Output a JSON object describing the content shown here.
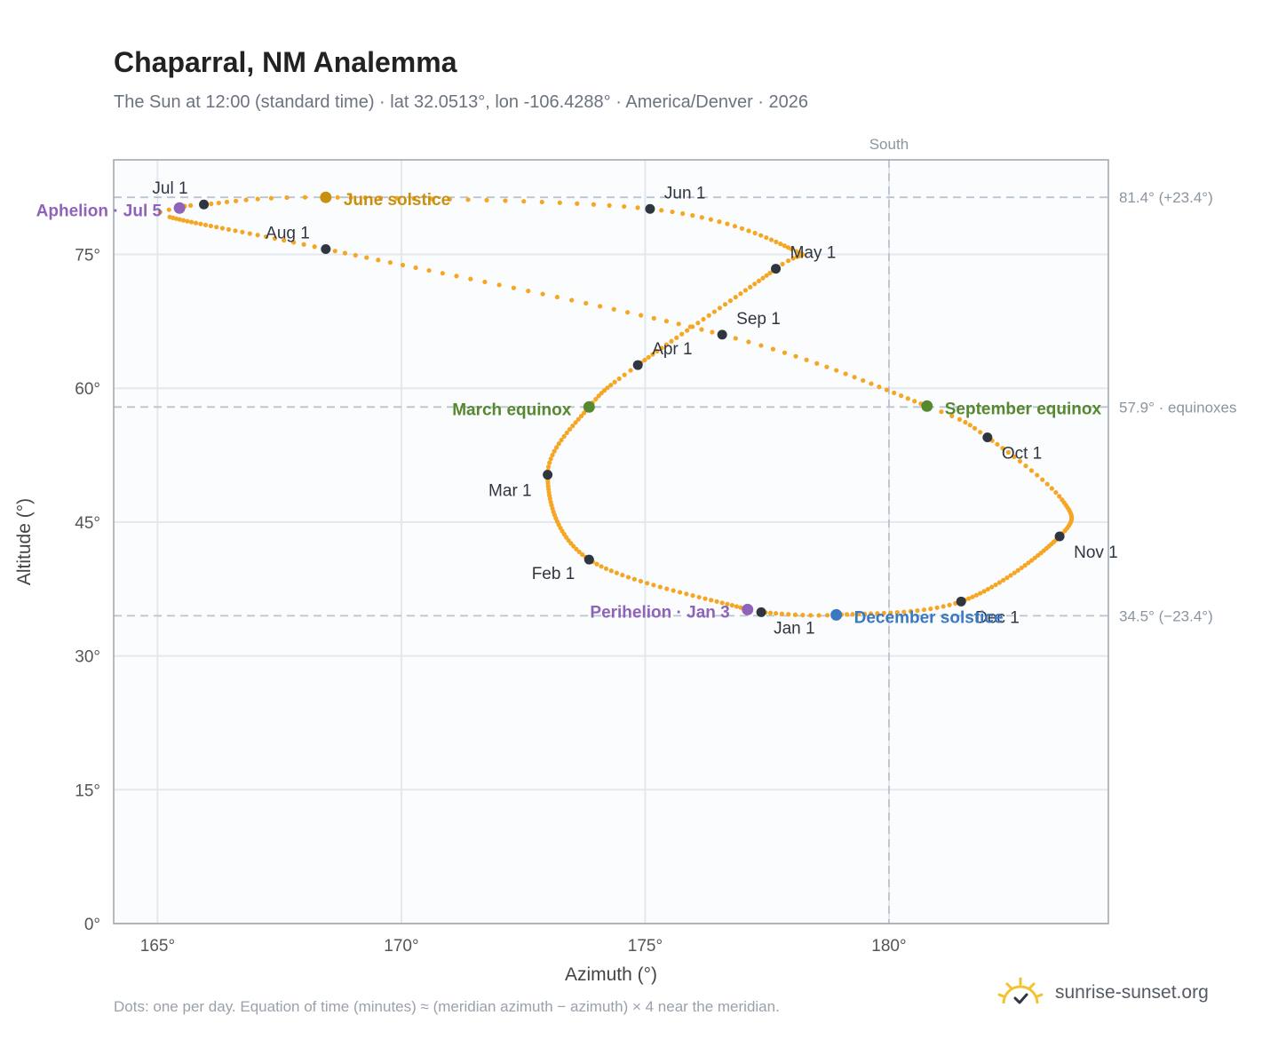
{
  "header": {
    "title": "Chaparral, NM Analemma",
    "subtitle": "The Sun at 12:00 (standard time) · lat 32.0513°, lon -106.4288° · America/Denver · 2026"
  },
  "footer": {
    "note": "Dots: one per day. Equation of time (minutes) ≈ (meridian azimuth − azimuth) × 4 near the meridian.",
    "brand": "sunrise-sunset.org"
  },
  "chart_data": {
    "type": "scatter",
    "xlabel": "Azimuth (°)",
    "ylabel": "Altitude (°)",
    "xlim": [
      164.1,
      184.5
    ],
    "ylim": [
      0,
      85.6
    ],
    "x_ticks": [
      165,
      170,
      175,
      180
    ],
    "x_tick_labels": [
      "165°",
      "170°",
      "175°",
      "180°"
    ],
    "y_ticks": [
      0,
      15,
      30,
      45,
      60,
      75
    ],
    "y_tick_labels": [
      "0°",
      "15°",
      "30°",
      "45°",
      "60°",
      "75°"
    ],
    "grid": true,
    "colors": {
      "path": "#f5a623",
      "month_marker": "#2f3640",
      "equinox": "#55882f",
      "june_solstice": "#c98f0e",
      "december_solstice": "#3b78c2",
      "apsis": "#8e63b8",
      "reference_line": "#b8c4cf"
    },
    "meridian": {
      "azimuth": 180,
      "label": "South"
    },
    "reference_lines": [
      {
        "altitude": 81.4,
        "label": "81.4° (+23.4°)"
      },
      {
        "altitude": 57.9,
        "label": "57.9° · equinoxes"
      },
      {
        "altitude": 34.5,
        "label": "34.5° (−23.4°)"
      }
    ],
    "month_markers": [
      {
        "label": "Jan 1",
        "azimuth": 177.38,
        "altitude": 34.9
      },
      {
        "label": "Feb 1",
        "azimuth": 173.85,
        "altitude": 40.8
      },
      {
        "label": "Mar 1",
        "azimuth": 173.0,
        "altitude": 50.3
      },
      {
        "label": "Apr 1",
        "azimuth": 174.85,
        "altitude": 62.6
      },
      {
        "label": "May 1",
        "azimuth": 177.68,
        "altitude": 73.4
      },
      {
        "label": "Jun 1",
        "azimuth": 175.1,
        "altitude": 80.1
      },
      {
        "label": "Jul 1",
        "azimuth": 165.95,
        "altitude": 80.6
      },
      {
        "label": "Aug 1",
        "azimuth": 168.45,
        "altitude": 75.6
      },
      {
        "label": "Sep 1",
        "azimuth": 176.58,
        "altitude": 66.0
      },
      {
        "label": "Oct 1",
        "azimuth": 182.02,
        "altitude": 54.5
      },
      {
        "label": "Nov 1",
        "azimuth": 183.5,
        "altitude": 43.4
      },
      {
        "label": "Dec 1",
        "azimuth": 181.48,
        "altitude": 36.1
      }
    ],
    "events": [
      {
        "label": "March equinox",
        "azimuth": 173.85,
        "altitude": 57.9,
        "kind": "equinox"
      },
      {
        "label": "June solstice",
        "azimuth": 168.45,
        "altitude": 81.4,
        "kind": "june_solstice"
      },
      {
        "label": "September equinox",
        "azimuth": 180.78,
        "altitude": 58.0,
        "kind": "equinox"
      },
      {
        "label": "December solstice",
        "azimuth": 178.92,
        "altitude": 34.6,
        "kind": "december_solstice"
      },
      {
        "label": "Aphelion · Jul 5",
        "azimuth": 165.45,
        "altitude": 80.2,
        "kind": "apsis"
      },
      {
        "label": "Perihelion · Jan 3",
        "azimuth": 177.1,
        "altitude": 35.2,
        "kind": "apsis"
      }
    ]
  }
}
